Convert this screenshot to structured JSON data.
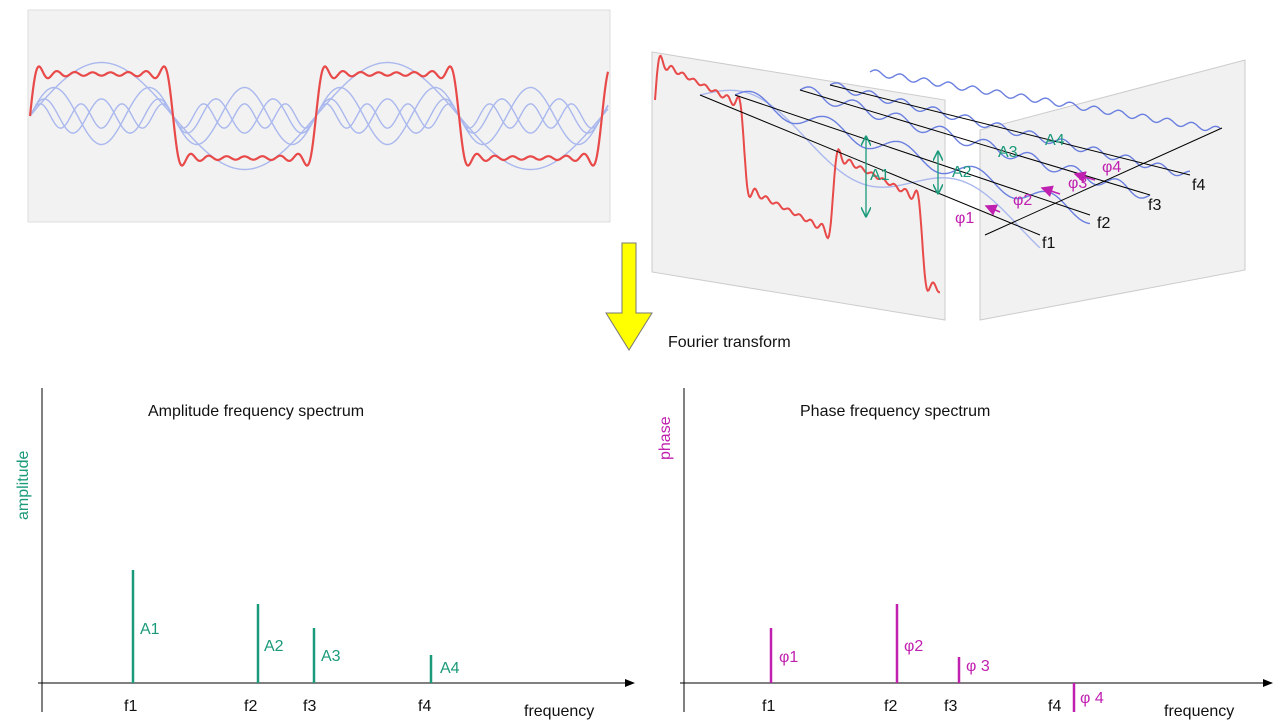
{
  "top_diagram": {
    "amplitude_labels": [
      "A1",
      "A2",
      "A3",
      "A4"
    ],
    "phase_labels": [
      "φ1",
      "φ2",
      "φ3",
      "φ4"
    ],
    "frequency_labels": [
      "f1",
      "f2",
      "f3",
      "f4"
    ]
  },
  "arrow_label": "Fourier transform",
  "amplitude_spectrum": {
    "title": "Amplitude frequency spectrum",
    "y_label": "amplitude",
    "x_label": "frequency",
    "frequencies": [
      "f1",
      "f2",
      "f3",
      "f4"
    ],
    "labels": [
      "A1",
      "A2",
      "A3",
      "A4"
    ]
  },
  "phase_spectrum": {
    "title": "Phase frequency spectrum",
    "y_label": "phase",
    "x_label": "frequency",
    "frequencies": [
      "f1",
      "f2",
      "f3",
      "f4"
    ],
    "labels": [
      "φ1",
      "φ2",
      "φ 3",
      "φ 4"
    ]
  }
}
